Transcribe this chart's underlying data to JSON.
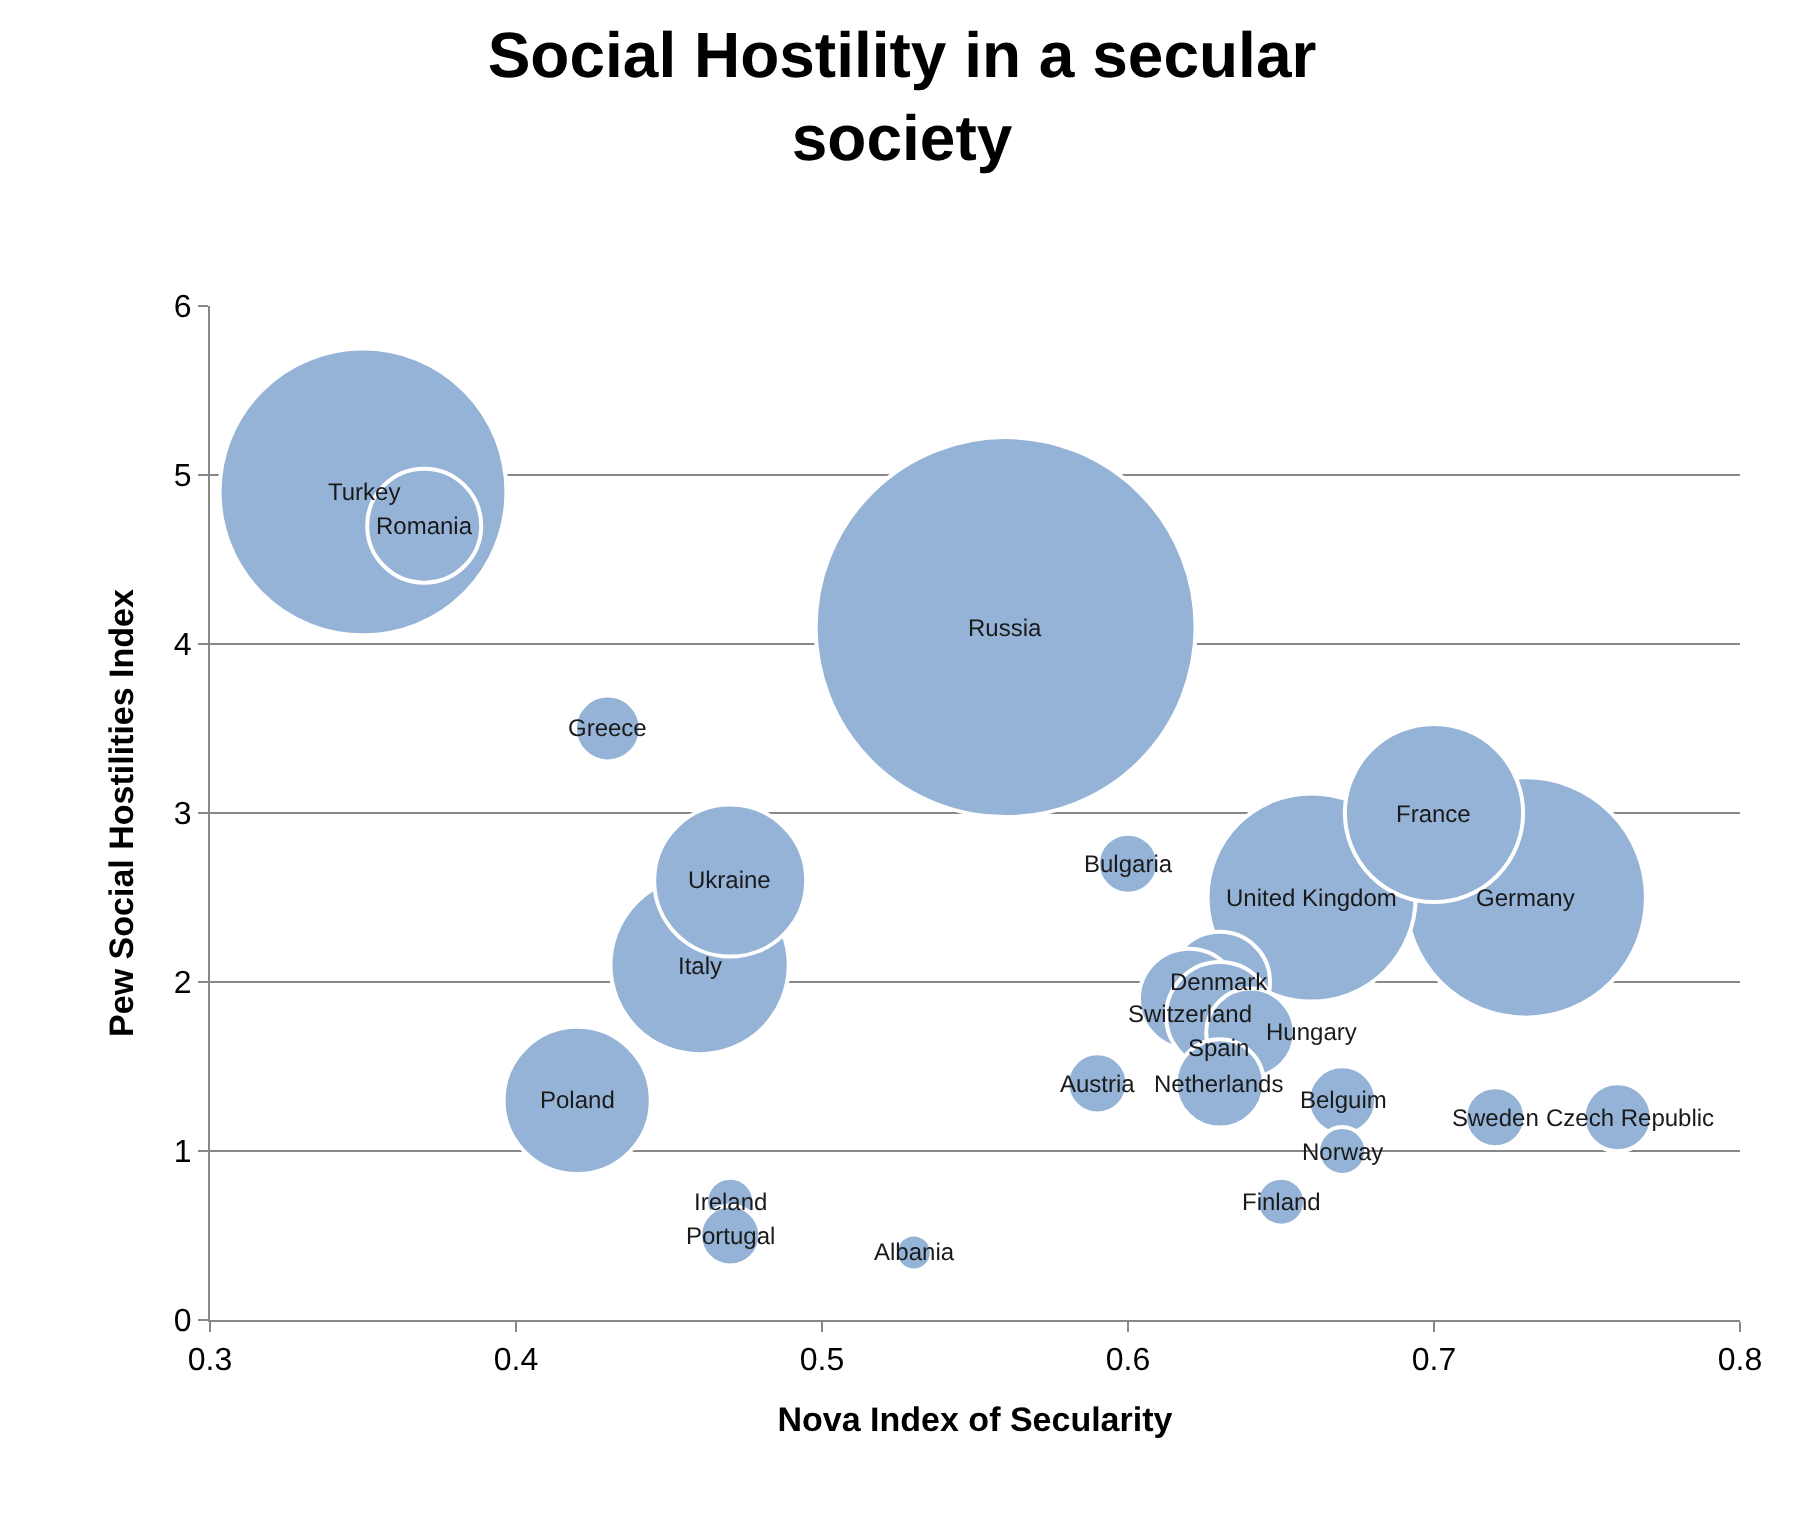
{
  "chart_data": {
    "type": "bubble",
    "title": "Social Hostility in a secular society",
    "xlabel": "Nova Index of Secularity",
    "ylabel": "Pew Social Hostilities Index",
    "xlim": [
      0.3,
      0.8
    ],
    "xticks": [
      {
        "value": 0.3,
        "label": "0.3"
      },
      {
        "value": 0.4,
        "label": "0.4"
      },
      {
        "value": 0.5,
        "label": "0.5"
      },
      {
        "value": 0.6,
        "label": "0.6"
      },
      {
        "value": 0.7,
        "label": "0.7"
      },
      {
        "value": 0.8,
        "label": "0.8"
      }
    ],
    "ylim": [
      0,
      6
    ],
    "yticks": [
      0,
      1,
      2,
      3,
      4,
      5,
      6
    ],
    "grid": "y",
    "legend": false,
    "series": [
      {
        "name": "Russia",
        "color": "#95b3d7",
        "x": [
          0.56
        ],
        "values": [
          4.1
        ],
        "sizes": [
          1
        ]
      },
      {
        "name": "Turkey",
        "color": "#95b3d7",
        "x": [
          0.35
        ],
        "values": [
          4.9
        ],
        "sizes": [
          0.57
        ]
      },
      {
        "name": "Romania",
        "color": "#95b3d7",
        "x": [
          0.37
        ],
        "values": [
          4.7
        ],
        "sizes": [
          0.09
        ]
      },
      {
        "name": "Greece",
        "color": "#95b3d7",
        "x": [
          0.43
        ],
        "values": [
          3.5
        ],
        "sizes": [
          0.03
        ]
      },
      {
        "name": "Italy",
        "color": "#95b3d7",
        "x": [
          0.46
        ],
        "values": [
          2.1
        ],
        "sizes": [
          0.22
        ]
      },
      {
        "name": "Ukraine",
        "color": "#95b3d7",
        "x": [
          0.47
        ],
        "values": [
          2.6
        ],
        "sizes": [
          0.16
        ]
      },
      {
        "name": "Poland",
        "color": "#95b3d7",
        "x": [
          0.42
        ],
        "values": [
          1.3
        ],
        "sizes": [
          0.15
        ]
      },
      {
        "name": "Ireland",
        "color": "#95b3d7",
        "x": [
          0.47
        ],
        "values": [
          0.7
        ],
        "sizes": [
          0.016
        ]
      },
      {
        "name": "Portugal",
        "color": "#95b3d7",
        "x": [
          0.47
        ],
        "values": [
          0.5
        ],
        "sizes": [
          0.025
        ]
      },
      {
        "name": "Albania",
        "color": "#95b3d7",
        "x": [
          0.53
        ],
        "values": [
          0.4
        ],
        "sizes": [
          0.009
        ]
      },
      {
        "name": "Bulgaria",
        "color": "#95b3d7",
        "x": [
          0.6
        ],
        "values": [
          2.7
        ],
        "sizes": [
          0.025
        ]
      },
      {
        "name": "Germany",
        "color": "#95b3d7",
        "x": [
          0.73
        ],
        "values": [
          2.5
        ],
        "sizes": [
          0.4
        ]
      },
      {
        "name": "United Kingdom",
        "color": "#95b3d7",
        "x": [
          0.66
        ],
        "values": [
          2.5
        ],
        "sizes": [
          0.3
        ]
      },
      {
        "name": "France",
        "color": "#95b3d7",
        "x": [
          0.7
        ],
        "values": [
          3.0
        ],
        "sizes": [
          0.22
        ]
      },
      {
        "name": "Denmark",
        "color": "#95b3d7",
        "x": [
          0.63
        ],
        "values": [
          2.0
        ],
        "sizes": [
          0.07
        ]
      },
      {
        "name": "Switzerland",
        "color": "#95b3d7",
        "x": [
          0.62
        ],
        "values": [
          1.9
        ],
        "sizes": [
          0.07
        ]
      },
      {
        "name": "Spain",
        "color": "#95b3d7",
        "x": [
          0.63
        ],
        "values": [
          1.8
        ],
        "sizes": [
          0.08
        ]
      },
      {
        "name": "Hungary",
        "color": "#95b3d7",
        "x": [
          0.64
        ],
        "values": [
          1.7
        ],
        "sizes": [
          0.054
        ]
      },
      {
        "name": "Austria",
        "color": "#95b3d7",
        "x": [
          0.59
        ],
        "values": [
          1.4
        ],
        "sizes": [
          0.025
        ]
      },
      {
        "name": "Netherlands",
        "color": "#95b3d7",
        "x": [
          0.63
        ],
        "values": [
          1.4
        ],
        "sizes": [
          0.054
        ]
      },
      {
        "name": "Belguim",
        "color": "#95b3d7",
        "x": [
          0.67
        ],
        "values": [
          1.3
        ],
        "sizes": [
          0.032
        ]
      },
      {
        "name": "Norway",
        "color": "#95b3d7",
        "x": [
          0.67
        ],
        "values": [
          1.0
        ],
        "sizes": [
          0.016
        ]
      },
      {
        "name": "Finland",
        "color": "#95b3d7",
        "x": [
          0.65
        ],
        "values": [
          0.7
        ],
        "sizes": [
          0.016
        ]
      },
      {
        "name": "Sweden",
        "color": "#95b3d7",
        "x": [
          0.72
        ],
        "values": [
          1.2
        ],
        "sizes": [
          0.025
        ]
      },
      {
        "name": "Czech Republic",
        "color": "#95b3d7",
        "x": [
          0.76
        ],
        "values": [
          1.2
        ],
        "sizes": [
          0.032
        ]
      }
    ]
  }
}
